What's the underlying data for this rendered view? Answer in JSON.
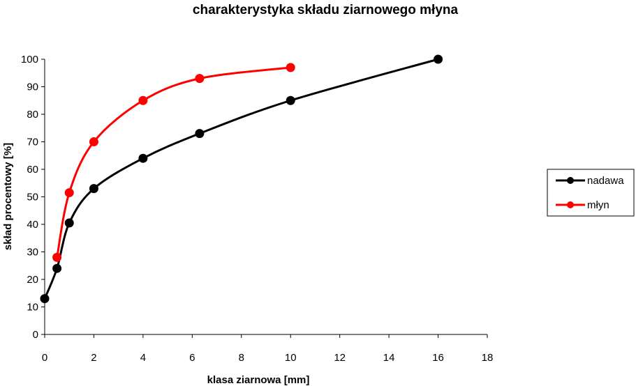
{
  "chart_data": {
    "type": "line",
    "title": "charakterystyka składu ziarnowego młyna",
    "xlabel": "klasa ziarnowa [mm]",
    "ylabel": "skład procentowy [%]",
    "xlim": [
      0,
      18
    ],
    "ylim": [
      0,
      100
    ],
    "xticks": [
      0,
      2,
      4,
      6,
      8,
      10,
      12,
      14,
      16,
      18
    ],
    "yticks": [
      0,
      10,
      20,
      30,
      40,
      50,
      60,
      70,
      80,
      90,
      100
    ],
    "grid": false,
    "smooth": true,
    "legend_position": "right",
    "series": [
      {
        "name": "nadawa",
        "color": "#000000",
        "x": [
          0,
          0.5,
          1,
          2,
          4,
          6.3,
          10,
          16
        ],
        "y": [
          13,
          24,
          40.5,
          53,
          64,
          73,
          85,
          100
        ]
      },
      {
        "name": "młyn",
        "color": "#ff0000",
        "x": [
          0.5,
          1,
          2,
          4,
          6.3,
          10
        ],
        "y": [
          28,
          51.5,
          70,
          85,
          93,
          97
        ]
      }
    ]
  }
}
